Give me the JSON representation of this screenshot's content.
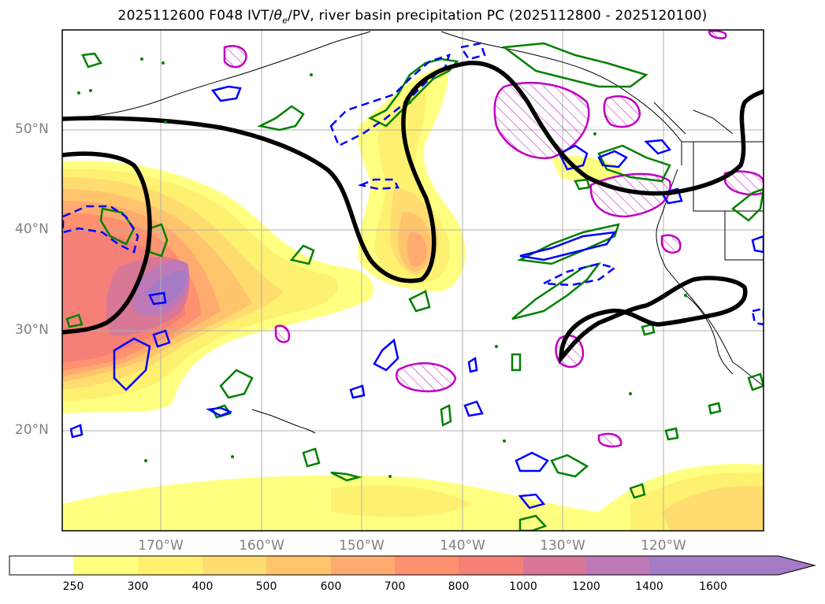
{
  "title": "2025112600 F048 IVT/θe/PV, river basin precipitation PC (2025112800 - 2025120100)",
  "title_parts": {
    "prefix": "2025112600 F048 IVT/",
    "theta": "θ",
    "sub": "e",
    "suffix": "/PV, river basin precipitation PC (2025112800 - 2025120100)"
  },
  "map": {
    "lon_range": [
      -180,
      -110
    ],
    "lat_range": [
      10,
      60
    ],
    "latitude_labels": [
      "50°N",
      "40°N",
      "30°N",
      "20°N"
    ],
    "longitude_labels": [
      "170°W",
      "160°W",
      "150°W",
      "140°W",
      "130°W",
      "120°W"
    ]
  },
  "legend": {
    "field": "IVT",
    "levels": [
      "250",
      "300",
      "400",
      "500",
      "600",
      "700",
      "800",
      "1000",
      "1200",
      "1400",
      "1600"
    ],
    "colors": [
      "#ffffff",
      "#ffff80",
      "#fff170",
      "#ffdc70",
      "#ffc46c",
      "#ffab70",
      "#ff9070",
      "#f58078",
      "#d97796",
      "#bd79b8",
      "#a57bc6",
      "#a57bc6"
    ],
    "extend": "max"
  },
  "contour_colors": {
    "pv": "#000000",
    "theta_e": "#008000",
    "blue": "#0000ff",
    "precip_pc": "#c000c0"
  }
}
